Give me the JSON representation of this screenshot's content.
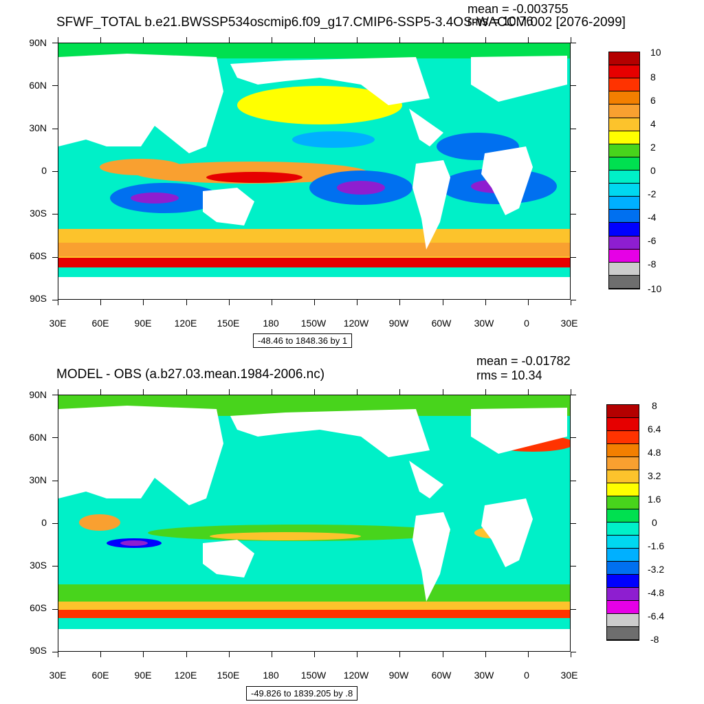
{
  "panels": [
    {
      "title": "SFWF_TOTAL b.e21.BWSSP534oscmip6.f09_g17.CMIP6-SSP5-3.4OS-WACCM.002 [2076-2099]",
      "mean": "mean = -0.003755",
      "rms": "rms = 10.76",
      "lat_labels": [
        "90N",
        "60N",
        "30N",
        "0",
        "30S",
        "60S",
        "90S"
      ],
      "lon_labels": [
        "30E",
        "60E",
        "90E",
        "120E",
        "150E",
        "180",
        "150W",
        "120W",
        "90W",
        "60W",
        "30W",
        "0",
        "30E"
      ],
      "range_text": "-48.46 to 1848.36 by 1",
      "colorbar_labels": [
        "10",
        "8",
        "6",
        "4",
        "2",
        "0",
        "-2",
        "-4",
        "-6",
        "-8",
        "-10"
      ],
      "colors": [
        "#b40000",
        "#e60000",
        "#ff3300",
        "#f37f00",
        "#f9a030",
        "#fcc32c",
        "#ffff00",
        "#48d41c",
        "#00e050",
        "#00f0c8",
        "#00d8f0",
        "#00b0ff",
        "#0070f0",
        "#0000ff",
        "#8e1ed0",
        "#e600e6",
        "#cccccc",
        "#6e6e6e"
      ]
    },
    {
      "title": "MODEL - OBS (a.b27.03.mean.1984-2006.nc)",
      "mean": "mean = -0.01782",
      "rms": "rms = 10.34",
      "lat_labels": [
        "90N",
        "60N",
        "30N",
        "0",
        "30S",
        "60S",
        "90S"
      ],
      "lon_labels": [
        "30E",
        "60E",
        "90E",
        "120E",
        "150E",
        "180",
        "150W",
        "120W",
        "90W",
        "60W",
        "30W",
        "0",
        "30E"
      ],
      "range_text": "-49.826 to 1839.205 by .8",
      "colorbar_labels": [
        "8",
        "6.4",
        "4.8",
        "3.2",
        "1.6",
        "0",
        "-1.6",
        "-3.2",
        "-4.8",
        "-6.4",
        "-8"
      ],
      "colors": [
        "#b40000",
        "#e60000",
        "#ff3300",
        "#f37f00",
        "#f9a030",
        "#fcc32c",
        "#ffff00",
        "#48d41c",
        "#00e050",
        "#00f0c8",
        "#00d8f0",
        "#00b0ff",
        "#0070f0",
        "#0000ff",
        "#8e1ed0",
        "#e600e6",
        "#cccccc",
        "#6e6e6e"
      ]
    }
  ]
}
